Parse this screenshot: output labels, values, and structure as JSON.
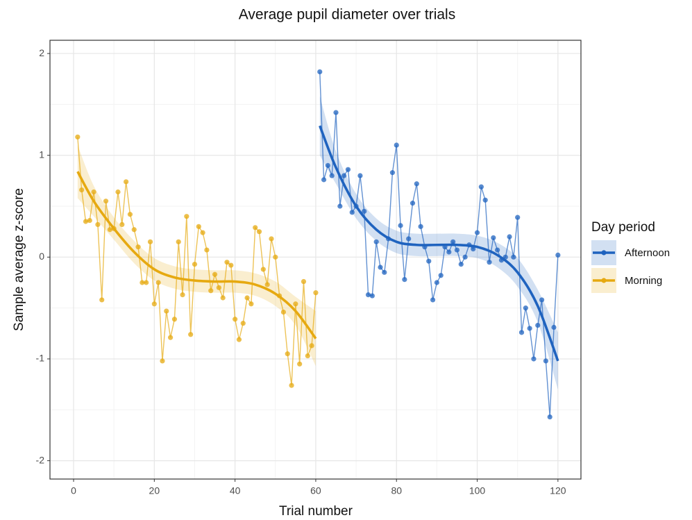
{
  "chart_data": {
    "type": "line",
    "title": "Average pupil diameter over trials",
    "x_label": "Trial number",
    "y_label": "Sample average z-score",
    "legend_title": "Day period",
    "legend": "right",
    "grid": true,
    "xlim": [
      -5.85,
      125.7
    ],
    "ylim": [
      -2.18,
      2.13
    ],
    "xticks": [
      0,
      20,
      40,
      60,
      80,
      100,
      120
    ],
    "yticks": [
      -2,
      -1,
      0,
      1,
      2
    ],
    "series": [
      {
        "name": "Afternoon",
        "color": "#1f63bf",
        "x": [
          61,
          62,
          63,
          64,
          65,
          66,
          67,
          68,
          69,
          70,
          71,
          72,
          73,
          74,
          75,
          76,
          77,
          78,
          79,
          80,
          81,
          82,
          83,
          84,
          85,
          86,
          87,
          88,
          89,
          90,
          91,
          92,
          93,
          94,
          95,
          96,
          97,
          98,
          99,
          100,
          101,
          102,
          103,
          104,
          105,
          106,
          107,
          108,
          109,
          110,
          111,
          112,
          113,
          114,
          115,
          116,
          117,
          118,
          119,
          120
        ],
        "values": [
          1.82,
          0.76,
          0.9,
          0.8,
          1.42,
          0.5,
          0.8,
          0.86,
          0.44,
          0.5,
          0.8,
          0.45,
          -0.37,
          -0.38,
          0.15,
          -0.1,
          -0.15,
          0.18,
          0.83,
          1.1,
          0.31,
          -0.22,
          0.18,
          0.53,
          0.72,
          0.3,
          0.1,
          -0.04,
          -0.42,
          -0.25,
          -0.18,
          0.1,
          0.05,
          0.15,
          0.07,
          -0.07,
          0.0,
          0.12,
          0.08,
          0.24,
          0.69,
          0.56,
          -0.05,
          0.19,
          0.07,
          -0.03,
          0.0,
          0.2,
          0.0,
          0.39,
          -0.74,
          -0.5,
          -0.7,
          -1.0,
          -0.67,
          -0.42,
          -1.02,
          -1.57,
          -0.69,
          0.02
        ],
        "trend": {
          "x": [
            61,
            65,
            70,
            75,
            80,
            85,
            90,
            95,
            100,
            105,
            110,
            115,
            120
          ],
          "values": [
            1.29,
            0.88,
            0.5,
            0.27,
            0.15,
            0.12,
            0.12,
            0.12,
            0.1,
            0.02,
            -0.15,
            -0.48,
            -1.02
          ],
          "lower": [
            1.0,
            0.72,
            0.38,
            0.16,
            0.04,
            0.01,
            0.01,
            0.01,
            -0.01,
            -0.1,
            -0.29,
            -0.64,
            -1.3
          ],
          "upper": [
            1.58,
            1.04,
            0.62,
            0.38,
            0.26,
            0.23,
            0.23,
            0.23,
            0.21,
            0.14,
            -0.01,
            -0.32,
            -0.74
          ]
        }
      },
      {
        "name": "Morning",
        "color": "#e6a910",
        "x": [
          1,
          2,
          3,
          4,
          5,
          6,
          7,
          8,
          9,
          10,
          11,
          12,
          13,
          14,
          15,
          16,
          17,
          18,
          19,
          20,
          21,
          22,
          23,
          24,
          25,
          26,
          27,
          28,
          29,
          30,
          31,
          32,
          33,
          34,
          35,
          36,
          37,
          38,
          39,
          40,
          41,
          42,
          43,
          44,
          45,
          46,
          47,
          48,
          49,
          50,
          51,
          52,
          53,
          54,
          55,
          56,
          57,
          58,
          59,
          60
        ],
        "values": [
          1.18,
          0.66,
          0.35,
          0.36,
          0.64,
          0.32,
          -0.42,
          0.55,
          0.27,
          0.28,
          0.64,
          0.32,
          0.74,
          0.42,
          0.27,
          0.1,
          -0.25,
          -0.25,
          0.15,
          -0.46,
          -0.25,
          -1.02,
          -0.53,
          -0.79,
          -0.61,
          0.15,
          -0.37,
          0.4,
          -0.76,
          -0.07,
          0.3,
          0.24,
          0.07,
          -0.33,
          -0.17,
          -0.3,
          -0.4,
          -0.05,
          -0.08,
          -0.61,
          -0.81,
          -0.65,
          -0.4,
          -0.46,
          0.29,
          0.25,
          -0.12,
          -0.27,
          0.18,
          0.0,
          -0.38,
          -0.54,
          -0.95,
          -1.26,
          -0.46,
          -1.05,
          -0.24,
          -0.97,
          -0.87,
          -0.35
        ],
        "trend": {
          "x": [
            1,
            5,
            10,
            15,
            20,
            25,
            30,
            35,
            40,
            45,
            50,
            55,
            60
          ],
          "values": [
            0.84,
            0.55,
            0.28,
            0.05,
            -0.12,
            -0.2,
            -0.23,
            -0.24,
            -0.24,
            -0.27,
            -0.36,
            -0.53,
            -0.8
          ],
          "lower": [
            0.58,
            0.4,
            0.17,
            -0.06,
            -0.23,
            -0.31,
            -0.34,
            -0.35,
            -0.35,
            -0.38,
            -0.48,
            -0.67,
            -1.07
          ],
          "upper": [
            1.1,
            0.7,
            0.39,
            0.16,
            -0.01,
            -0.09,
            -0.12,
            -0.13,
            -0.13,
            -0.16,
            -0.24,
            -0.39,
            -0.53
          ]
        }
      }
    ]
  }
}
